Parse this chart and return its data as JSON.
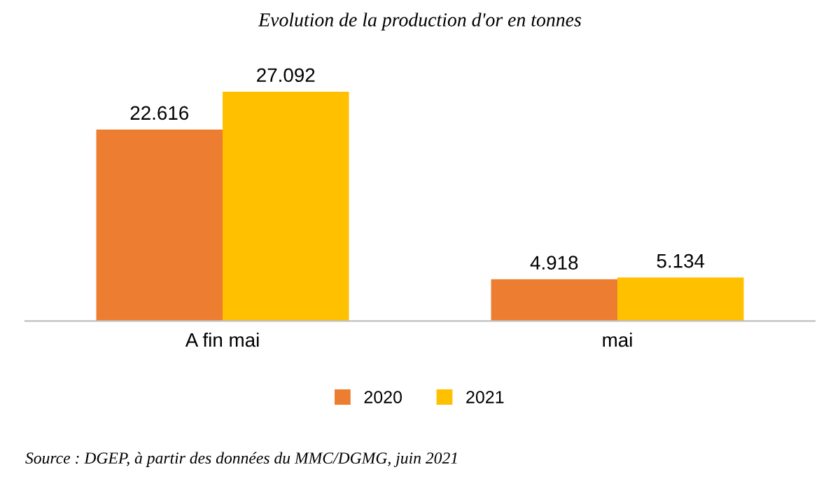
{
  "chart_data": {
    "type": "bar",
    "title": "Evolution de la production d'or en tonnes",
    "categories": [
      "A fin mai",
      "mai"
    ],
    "series": [
      {
        "name": "2020",
        "color": "#ed7d31",
        "values": [
          22.616,
          4.918
        ]
      },
      {
        "name": "2021",
        "color": "#ffc000",
        "values": [
          27.092,
          5.134
        ]
      }
    ],
    "data_labels": true,
    "legend": "bottom",
    "annotations": [
      "Source : DGEP, à partir des données du MMC/DGMG, juin 2021"
    ]
  }
}
